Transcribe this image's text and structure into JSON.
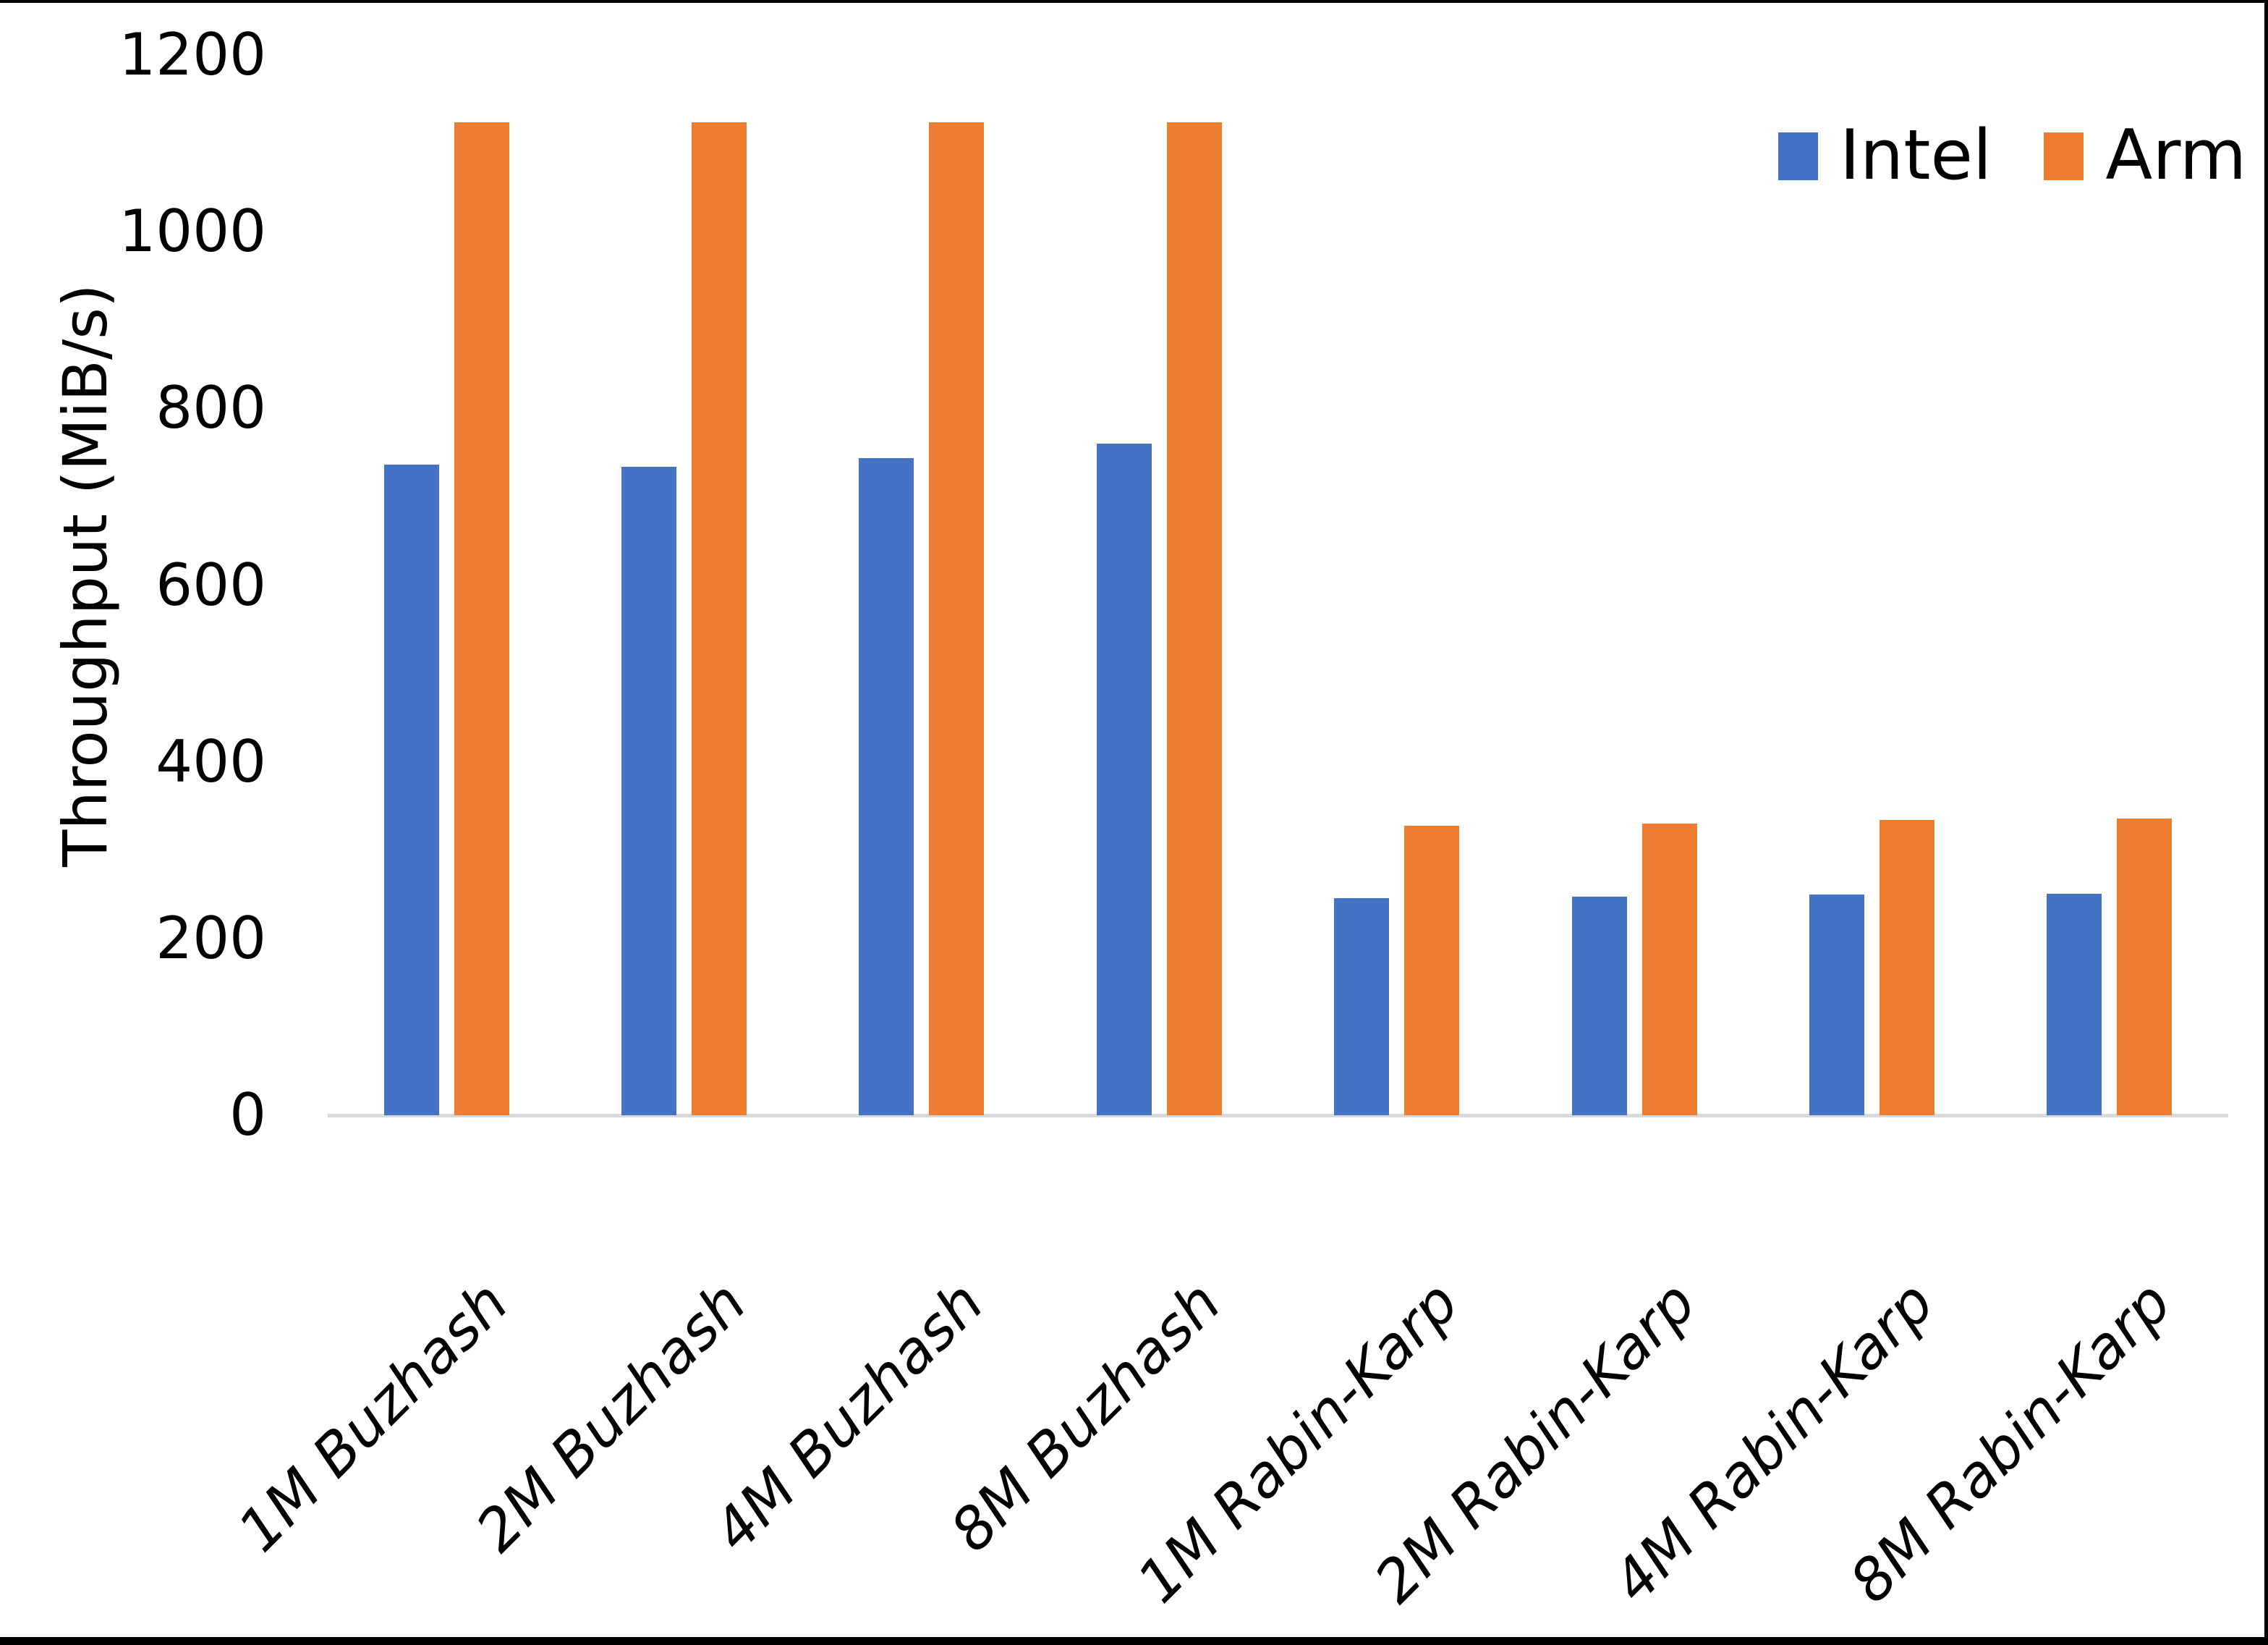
{
  "chart_data": {
    "type": "bar",
    "title": "",
    "categories": [
      "1M Buzhash",
      "2M Buzhash",
      "4M Buzhash",
      "8M Buzhash",
      "1M Rabin-Karp",
      "2M Rabin-Karp",
      "4M Rabin-Karp",
      "8M Rabin-Karp"
    ],
    "series": [
      {
        "name": "Intel",
        "color": "#4472C4",
        "values": [
          736,
          734,
          744,
          760,
          246,
          247,
          250,
          251
        ]
      },
      {
        "name": "Arm",
        "color": "#ED7D31",
        "values": [
          1124,
          1124,
          1124,
          1124,
          328,
          330,
          334,
          336
        ]
      }
    ],
    "xlabel": "",
    "ylabel": "Throughput (MiB/s)",
    "ylim": [
      0,
      1200
    ],
    "yticks": [
      0,
      200,
      400,
      600,
      800,
      1000,
      1200
    ],
    "grid": false,
    "legend_position": "top-right",
    "axis_line_color": "#D9D9D9"
  }
}
